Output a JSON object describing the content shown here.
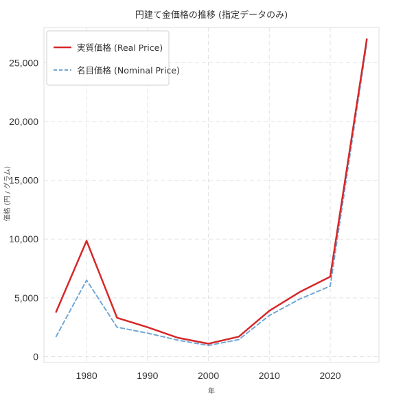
{
  "chart_data": {
    "type": "line",
    "title": "円建て金価格の推移 (指定データのみ)",
    "xlabel": "年",
    "ylabel": "価格 (円 / グラム)",
    "xlim": [
      1973,
      2028
    ],
    "ylim": [
      -500,
      28000
    ],
    "x_ticks": [
      1980,
      1990,
      2000,
      2010,
      2020
    ],
    "y_ticks": [
      0,
      5000,
      10000,
      15000,
      20000,
      25000
    ],
    "x_tick_labels": [
      "1980",
      "1990",
      "2000",
      "2010",
      "2020"
    ],
    "y_tick_labels": [
      "0",
      "5,000",
      "10,000",
      "15,000",
      "20,000",
      "25,000"
    ],
    "grid": true,
    "legend_position": "top-left",
    "series": [
      {
        "name": "実質価格 (Real Price)",
        "color": "#d62728",
        "style": "solid",
        "x": [
          1975,
          1980,
          1985,
          1990,
          1995,
          2000,
          2005,
          2010,
          2015,
          2020,
          2026
        ],
        "values": [
          3800,
          9850,
          3300,
          2500,
          1600,
          1100,
          1700,
          3900,
          5500,
          6800,
          27000
        ]
      },
      {
        "name": "名目価格 (Nominal Price)",
        "color": "#6fa8d6",
        "style": "dashed",
        "x": [
          1975,
          1980,
          1985,
          1990,
          1995,
          2000,
          2005,
          2010,
          2015,
          2020,
          2026
        ],
        "values": [
          1700,
          6500,
          2500,
          2000,
          1400,
          950,
          1450,
          3500,
          4900,
          6000,
          26700
        ]
      }
    ]
  }
}
